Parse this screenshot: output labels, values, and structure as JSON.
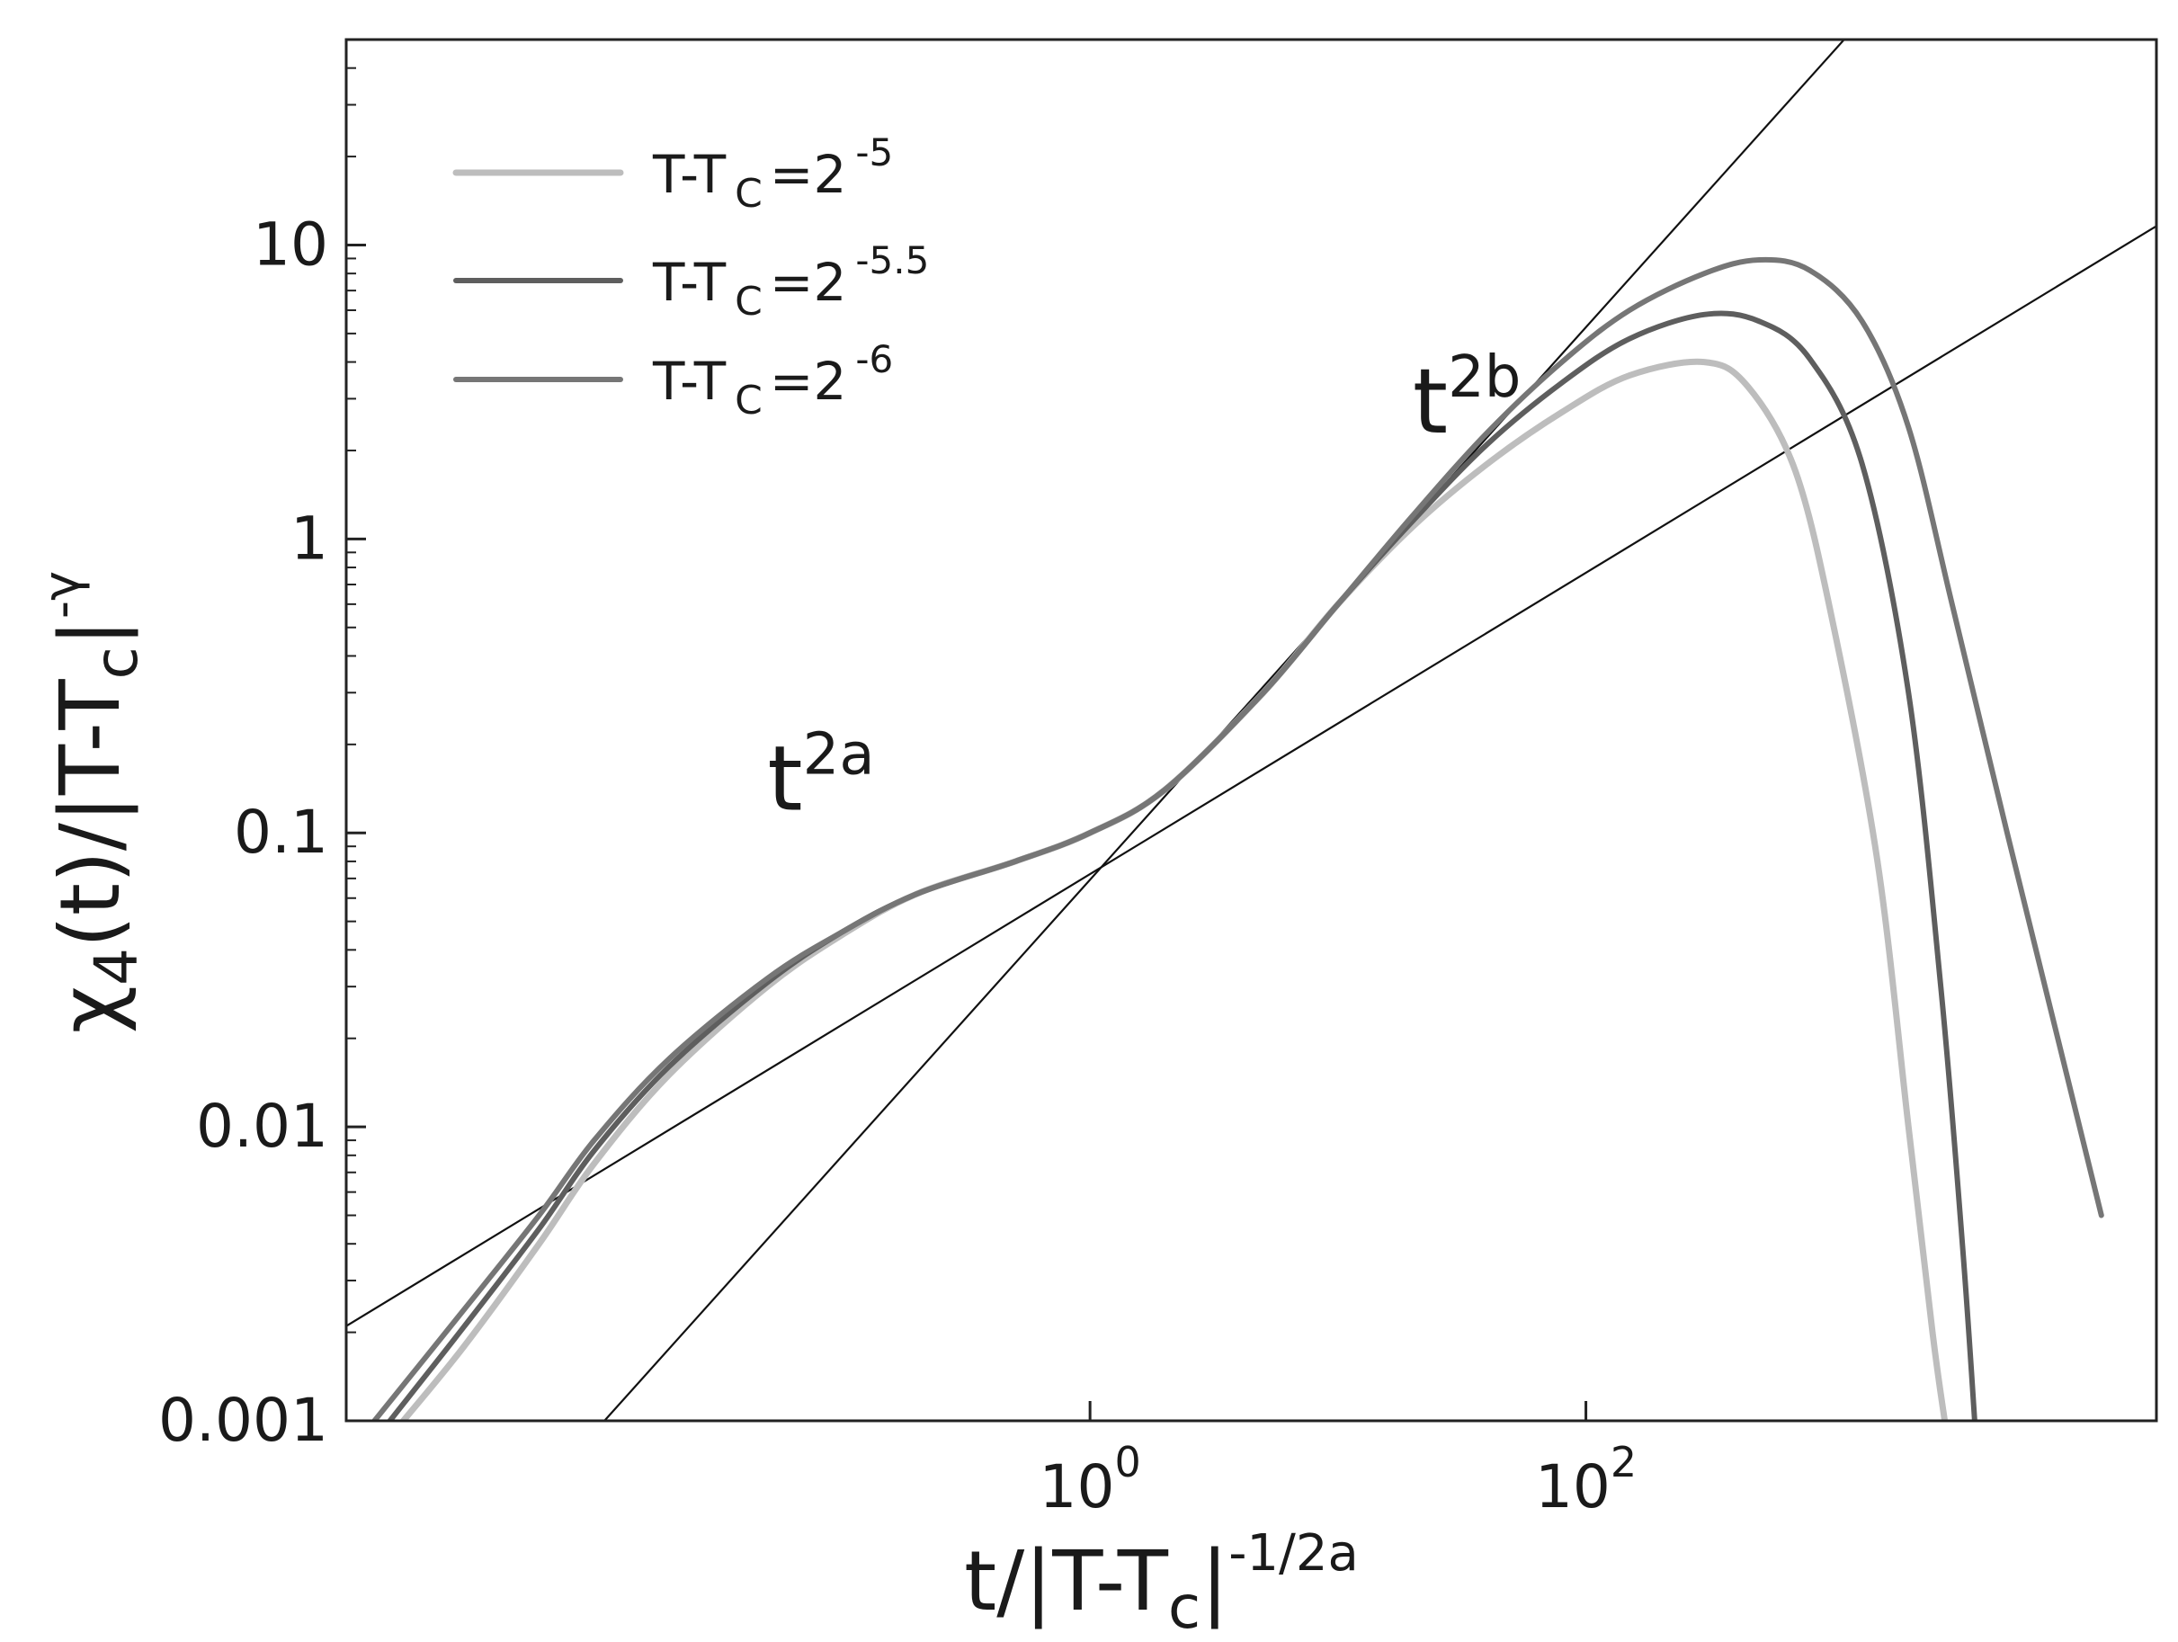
{
  "chart_data": {
    "type": "line",
    "xscale": "log",
    "yscale": "log",
    "xlim": [
      0.001,
      20000
    ],
    "ylim": [
      0.001,
      50
    ],
    "xlabel": {
      "base": "t/|T-T",
      "sub": "c",
      "mid": "|",
      "sup": "-1/2a"
    },
    "ylabel": {
      "pre": "χ",
      "sub": "4",
      "mid": "(t)/|T-T",
      "sub2": "c",
      "post": "|",
      "sup": "-γ"
    },
    "x_ticks": [
      {
        "value": 1,
        "base": "10",
        "exp": "0"
      },
      {
        "value": 100,
        "base": "10",
        "exp": "2"
      }
    ],
    "y_ticks": [
      {
        "value": 0.001,
        "label": "0.001"
      },
      {
        "value": 0.01,
        "label": "0.01"
      },
      {
        "value": 0.1,
        "label": "0.1"
      },
      {
        "value": 1,
        "label": "1"
      },
      {
        "value": 10,
        "label": "10"
      }
    ],
    "legend_position": "top-left",
    "series": [
      {
        "name": "T-T_C=2^-5",
        "label": {
          "a": "T-T",
          "sub": "C",
          "b": "=2",
          "sup": "-5"
        },
        "color": "#bdbdbd",
        "points": [
          [
            0.0017,
            0.001
          ],
          [
            0.003,
            0.0018
          ],
          [
            0.006,
            0.004
          ],
          [
            0.01,
            0.0075
          ],
          [
            0.02,
            0.015
          ],
          [
            0.05,
            0.03
          ],
          [
            0.1,
            0.045
          ],
          [
            0.2,
            0.062
          ],
          [
            0.5,
            0.08
          ],
          [
            1,
            0.1
          ],
          [
            2,
            0.14
          ],
          [
            5,
            0.3
          ],
          [
            10,
            0.6
          ],
          [
            20,
            1.1
          ],
          [
            40,
            1.8
          ],
          [
            80,
            2.7
          ],
          [
            150,
            3.6
          ],
          [
            300,
            4.0
          ],
          [
            450,
            3.3
          ],
          [
            700,
            1.7
          ],
          [
            1000,
            0.5
          ],
          [
            1500,
            0.08
          ],
          [
            2000,
            0.01
          ],
          [
            2500,
            0.002
          ],
          [
            2800,
            0.001
          ]
        ]
      },
      {
        "name": "T-T_C=2^-5.5",
        "label": {
          "a": "T-T",
          "sub": "C",
          "b": "=2",
          "sup": "-5.5"
        },
        "color": "#5e5e5e",
        "points": [
          [
            0.0015,
            0.001
          ],
          [
            0.003,
            0.0021
          ],
          [
            0.006,
            0.0045
          ],
          [
            0.01,
            0.0083
          ],
          [
            0.02,
            0.016
          ],
          [
            0.05,
            0.031
          ],
          [
            0.1,
            0.046
          ],
          [
            0.2,
            0.062
          ],
          [
            0.5,
            0.08
          ],
          [
            1,
            0.1
          ],
          [
            2,
            0.14
          ],
          [
            5,
            0.3
          ],
          [
            10,
            0.6
          ],
          [
            20,
            1.15
          ],
          [
            40,
            2.1
          ],
          [
            80,
            3.4
          ],
          [
            150,
            4.8
          ],
          [
            300,
            5.8
          ],
          [
            500,
            5.5
          ],
          [
            800,
            4.1
          ],
          [
            1300,
            1.8
          ],
          [
            2000,
            0.3
          ],
          [
            2700,
            0.03
          ],
          [
            3300,
            0.004
          ],
          [
            3700,
            0.001
          ]
        ]
      },
      {
        "name": "T-T_C=2^-6",
        "label": {
          "a": "T-T",
          "sub": "C",
          "b": "=2",
          "sup": "-6"
        },
        "color": "#767676",
        "points": [
          [
            0.0013,
            0.001
          ],
          [
            0.003,
            0.0024
          ],
          [
            0.006,
            0.005
          ],
          [
            0.01,
            0.009
          ],
          [
            0.02,
            0.017
          ],
          [
            0.05,
            0.032
          ],
          [
            0.1,
            0.046
          ],
          [
            0.2,
            0.062
          ],
          [
            0.5,
            0.08
          ],
          [
            1,
            0.1
          ],
          [
            2,
            0.14
          ],
          [
            5,
            0.3
          ],
          [
            10,
            0.6
          ],
          [
            20,
            1.2
          ],
          [
            40,
            2.3
          ],
          [
            80,
            4.0
          ],
          [
            150,
            6.0
          ],
          [
            300,
            8.0
          ],
          [
            500,
            8.9
          ],
          [
            800,
            8.2
          ],
          [
            1300,
            5.5
          ],
          [
            2000,
            2.4
          ],
          [
            3000,
            0.6
          ],
          [
            5000,
            0.1
          ],
          [
            8000,
            0.02
          ],
          [
            12000,
            0.005
          ]
        ]
      }
    ],
    "fit_lines": [
      {
        "name": "t^2a",
        "color": "#111111",
        "points": [
          [
            0.001,
            0.0021
          ],
          [
            20000,
            11.6
          ]
        ]
      },
      {
        "name": "t^2b",
        "color": "#111111",
        "points": [
          [
            0.011,
            0.001
          ],
          [
            1100,
            50
          ]
        ]
      }
    ],
    "annotations": [
      {
        "text": "t",
        "sup": "2a",
        "x": 0.05,
        "y": 0.12
      },
      {
        "text": "t",
        "sup": "2b",
        "x": 20,
        "y": 2.3
      }
    ]
  }
}
